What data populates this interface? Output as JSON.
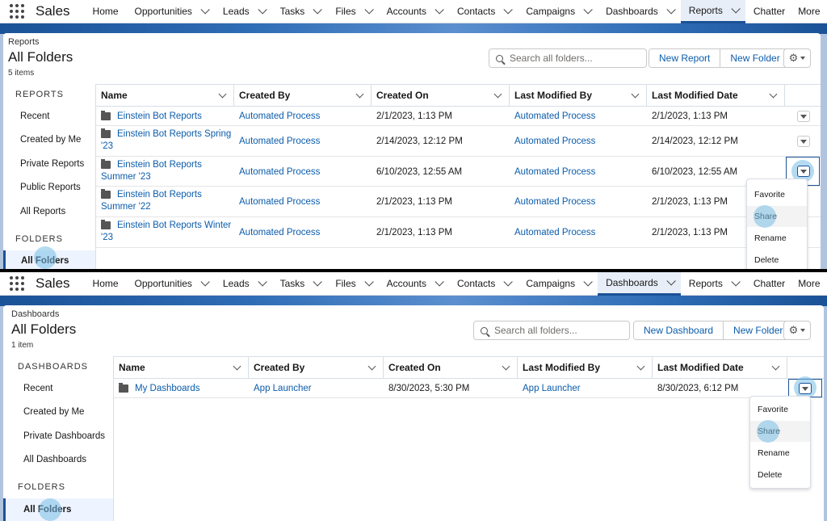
{
  "nav1": {
    "app_name": "Sales",
    "items": [
      "Home",
      "Opportunities",
      "Leads",
      "Tasks",
      "Files",
      "Accounts",
      "Contacts",
      "Campaigns",
      "Dashboards",
      "Reports",
      "Chatter"
    ],
    "more": "More",
    "active": "Reports"
  },
  "nav2": {
    "app_name": "Sales",
    "items": [
      "Home",
      "Opportunities",
      "Leads",
      "Tasks",
      "Files",
      "Accounts",
      "Contacts",
      "Campaigns",
      "Dashboards",
      "Reports",
      "Chatter"
    ],
    "more": "More",
    "active": "Dashboards"
  },
  "reports": {
    "object_label": "Reports",
    "title": "All Folders",
    "count": "5 items",
    "search_placeholder": "Search all folders...",
    "new_button": "New Report",
    "new_folder_button": "New Folder",
    "sidebar_heading": "REPORTS",
    "sidebar_items": [
      "Recent",
      "Created by Me",
      "Private Reports",
      "Public Reports",
      "All Reports"
    ],
    "folders_heading": "FOLDERS",
    "folders_selected": "All Folders",
    "columns": [
      "Name",
      "Created By",
      "Created On",
      "Last Modified By",
      "Last Modified Date"
    ],
    "rows": [
      {
        "name_l1": "Einstein Bot Reports",
        "name_l2": "",
        "created_by": "Automated Process",
        "created_on": "2/1/2023, 1:13 PM",
        "modified_by": "Automated Process",
        "modified_on": "2/1/2023, 1:13 PM"
      },
      {
        "name_l1": "Einstein Bot Reports Spring",
        "name_l2": "'23",
        "created_by": "Automated Process",
        "created_on": "2/14/2023, 12:12 PM",
        "modified_by": "Automated Process",
        "modified_on": "2/14/2023, 12:12 PM"
      },
      {
        "name_l1": "Einstein Bot Reports",
        "name_l2": "Summer '23",
        "created_by": "Automated Process",
        "created_on": "6/10/2023, 12:55 AM",
        "modified_by": "Automated Process",
        "modified_on": "6/10/2023, 12:55 AM"
      },
      {
        "name_l1": "Einstein Bot Reports",
        "name_l2": "Summer '22",
        "created_by": "Automated Process",
        "created_on": "2/1/2023, 1:13 PM",
        "modified_by": "Automated Process",
        "modified_on": "2/1/2023, 1:13 PM"
      },
      {
        "name_l1": "Einstein Bot Reports Winter",
        "name_l2": "'23",
        "created_by": "Automated Process",
        "created_on": "2/1/2023, 1:13 PM",
        "modified_by": "Automated Process",
        "modified_on": "2/1/2023, 1:13 PM"
      }
    ],
    "menu": [
      "Favorite",
      "Share",
      "Rename",
      "Delete"
    ]
  },
  "dashboards": {
    "object_label": "Dashboards",
    "title": "All Folders",
    "count": "1 item",
    "search_placeholder": "Search all folders...",
    "new_button": "New Dashboard",
    "new_folder_button": "New Folder",
    "sidebar_heading": "DASHBOARDS",
    "sidebar_items": [
      "Recent",
      "Created by Me",
      "Private Dashboards",
      "All Dashboards"
    ],
    "folders_heading": "FOLDERS",
    "folders_selected": "All Folders",
    "columns": [
      "Name",
      "Created By",
      "Created On",
      "Last Modified By",
      "Last Modified Date"
    ],
    "rows": [
      {
        "name_l1": "My Dashboards",
        "name_l2": "",
        "created_by": "App Launcher",
        "created_on": "8/30/2023, 5:30 PM",
        "modified_by": "App Launcher",
        "modified_on": "8/30/2023, 6:12 PM"
      }
    ],
    "menu": [
      "Favorite",
      "Share",
      "Rename",
      "Delete"
    ]
  }
}
